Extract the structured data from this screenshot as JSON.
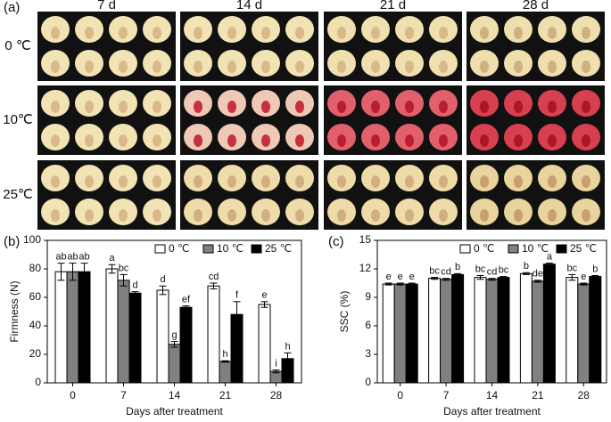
{
  "photo_panel": {
    "label": "(a)",
    "columns": [
      "7 d",
      "14 d",
      "21 d",
      "28 d"
    ],
    "rows": [
      "0 ℃",
      "10℃",
      "25℃"
    ]
  },
  "chart_data": [
    {
      "type": "bar",
      "label": "(b)",
      "y_label": "Firmness (N)",
      "x_label": "Days after treatment",
      "categories": [
        "0",
        "7",
        "14",
        "21",
        "28"
      ],
      "ylim": [
        0,
        100
      ],
      "yticks": [
        0,
        20,
        40,
        60,
        80,
        100
      ],
      "legend": "top-right",
      "series": [
        {
          "name": "0 ℃",
          "color": "#ffffff",
          "values": [
            78,
            80,
            65,
            68,
            55
          ],
          "errors": [
            6,
            3,
            3,
            2,
            2
          ],
          "letters": [
            "ab",
            "a",
            "d",
            "cd",
            "e"
          ]
        },
        {
          "name": "10 ℃",
          "color": "#808080",
          "values": [
            78,
            72,
            27,
            15,
            8
          ],
          "errors": [
            6,
            4,
            2,
            0.5,
            1
          ],
          "letters": [
            "ab",
            "bc",
            "g",
            "h",
            "i"
          ]
        },
        {
          "name": "25 ℃",
          "color": "#000000",
          "values": [
            78,
            63,
            53,
            48,
            17
          ],
          "errors": [
            6,
            1,
            1,
            9,
            4
          ],
          "letters": [
            "ab",
            "d",
            "ef",
            "f",
            "h"
          ]
        }
      ]
    },
    {
      "type": "bar",
      "label": "(c)",
      "y_label": "SSC (%)",
      "x_label": "Days after treatment",
      "categories": [
        "0",
        "7",
        "14",
        "21",
        "28"
      ],
      "ylim": [
        0,
        15
      ],
      "yticks": [
        0,
        3,
        6,
        9,
        12,
        15
      ],
      "legend": "top-right",
      "series": [
        {
          "name": "0 ℃",
          "color": "#ffffff",
          "values": [
            10.4,
            11.0,
            11.1,
            11.5,
            11.1
          ],
          "errors": [
            0.1,
            0.1,
            0.2,
            0.1,
            0.3
          ],
          "letters": [
            "e",
            "bc",
            "bc",
            "b",
            "bc"
          ]
        },
        {
          "name": "10 ℃",
          "color": "#808080",
          "values": [
            10.4,
            10.9,
            10.9,
            10.7,
            10.4
          ],
          "errors": [
            0.1,
            0.1,
            0.1,
            0.1,
            0.1
          ],
          "letters": [
            "e",
            "cd",
            "cd",
            "de",
            "e"
          ]
        },
        {
          "name": "25 ℃",
          "color": "#000000",
          "values": [
            10.4,
            11.4,
            11.1,
            12.5,
            11.2
          ],
          "errors": [
            0.1,
            0.1,
            0.1,
            0.1,
            0.1
          ],
          "letters": [
            "e",
            "b",
            "bc",
            "a",
            "b"
          ]
        }
      ]
    }
  ]
}
